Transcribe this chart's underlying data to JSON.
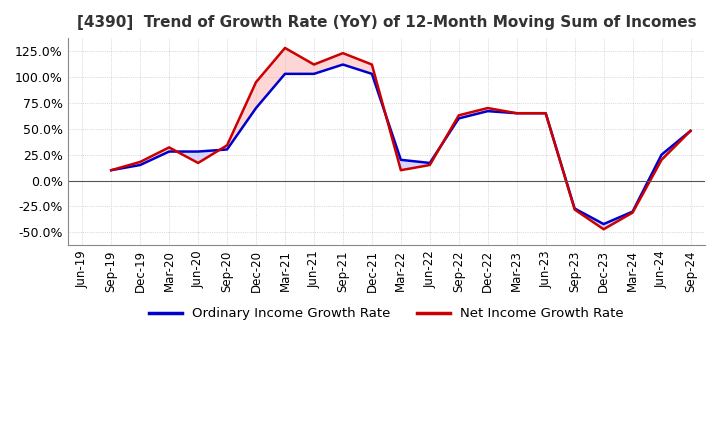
{
  "title": "[4390]  Trend of Growth Rate (YoY) of 12-Month Moving Sum of Incomes",
  "title_fontsize": 11,
  "legend_labels": [
    "Ordinary Income Growth Rate",
    "Net Income Growth Rate"
  ],
  "legend_colors": [
    "#0000cc",
    "#cc0000"
  ],
  "ylim": [
    -62.5,
    137.5
  ],
  "yticks": [
    -50.0,
    -25.0,
    0.0,
    25.0,
    50.0,
    75.0,
    100.0,
    125.0
  ],
  "dates": [
    "Jun-19",
    "Sep-19",
    "Dec-19",
    "Mar-20",
    "Jun-20",
    "Sep-20",
    "Dec-20",
    "Mar-21",
    "Jun-21",
    "Sep-21",
    "Dec-21",
    "Mar-22",
    "Jun-22",
    "Sep-22",
    "Dec-22",
    "Mar-23",
    "Jun-23",
    "Sep-23",
    "Dec-23",
    "Mar-24",
    "Jun-24",
    "Sep-24"
  ],
  "ordinary_income": [
    null,
    10.0,
    15.0,
    28.0,
    28.0,
    30.0,
    70.0,
    103.0,
    103.0,
    112.0,
    103.0,
    20.0,
    17.0,
    60.0,
    67.0,
    65.0,
    65.0,
    -27.0,
    -42.0,
    -30.0,
    25.0,
    48.0
  ],
  "net_income": [
    null,
    10.0,
    18.0,
    32.0,
    17.0,
    34.0,
    95.0,
    128.0,
    112.0,
    123.0,
    112.0,
    10.0,
    15.0,
    63.0,
    70.0,
    65.0,
    65.0,
    -28.0,
    -47.0,
    -31.0,
    20.0,
    48.0
  ],
  "background_color": "#ffffff",
  "grid_color": "#bbbbbb"
}
